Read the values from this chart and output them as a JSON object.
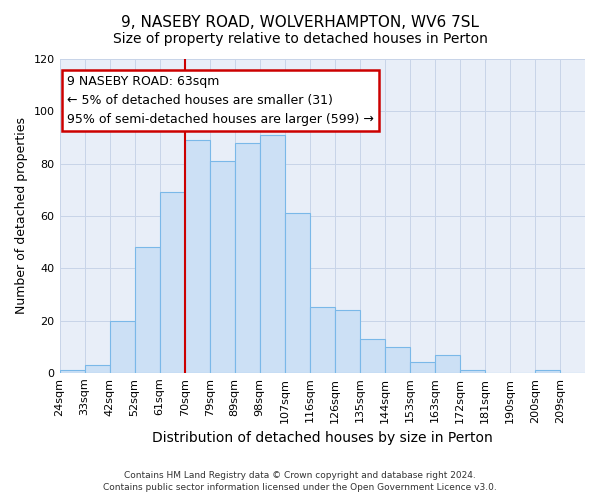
{
  "title": "9, NASEBY ROAD, WOLVERHAMPTON, WV6 7SL",
  "subtitle": "Size of property relative to detached houses in Perton",
  "xlabel": "Distribution of detached houses by size in Perton",
  "ylabel": "Number of detached properties",
  "bar_labels": [
    "24sqm",
    "33sqm",
    "42sqm",
    "52sqm",
    "61sqm",
    "70sqm",
    "79sqm",
    "89sqm",
    "98sqm",
    "107sqm",
    "116sqm",
    "126sqm",
    "135sqm",
    "144sqm",
    "153sqm",
    "163sqm",
    "172sqm",
    "181sqm",
    "190sqm",
    "200sqm",
    "209sqm"
  ],
  "bar_values": [
    1,
    3,
    20,
    48,
    69,
    89,
    81,
    88,
    91,
    61,
    25,
    24,
    13,
    10,
    4,
    7,
    1,
    0,
    0,
    1,
    0
  ],
  "bar_color": "#cce0f5",
  "bar_edgecolor": "#7ab8e8",
  "vline_x": 5.0,
  "vline_color": "#cc0000",
  "annotation_title": "9 NASEBY ROAD: 63sqm",
  "annotation_line1": "← 5% of detached houses are smaller (31)",
  "annotation_line2": "95% of semi-detached houses are larger (599) →",
  "annotation_box_edgecolor": "#cc0000",
  "annotation_box_facecolor": "#ffffff",
  "ylim": [
    0,
    120
  ],
  "yticks": [
    0,
    20,
    40,
    60,
    80,
    100,
    120
  ],
  "footer1": "Contains HM Land Registry data © Crown copyright and database right 2024.",
  "footer2": "Contains public sector information licensed under the Open Government Licence v3.0.",
  "bg_color": "#ffffff",
  "plot_bg_color": "#e8eef8",
  "grid_color": "#c8d4e8",
  "title_fontsize": 11,
  "subtitle_fontsize": 10,
  "xlabel_fontsize": 10,
  "ylabel_fontsize": 9,
  "tick_fontsize": 8,
  "footer_fontsize": 6.5,
  "ann_fontsize": 9
}
